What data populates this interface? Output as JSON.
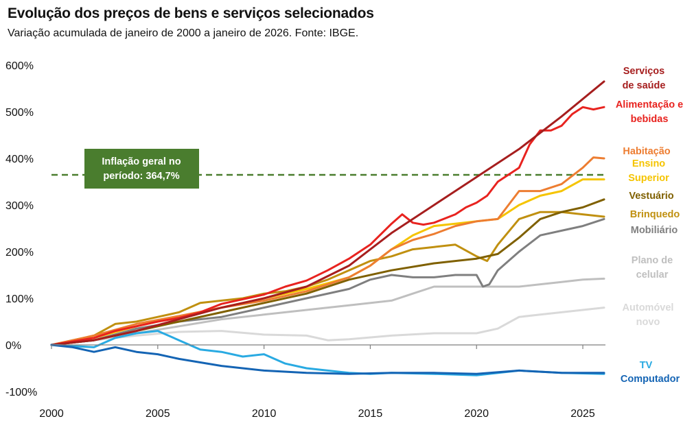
{
  "title": "Evolução dos preços de bens e serviços selecionados",
  "subtitle": "Variação acumulada de janeiro de 2000 a janeiro de 2026. Fonte: IBGE.",
  "chart_data": {
    "type": "line",
    "title": "Evolução dos preços de bens e serviços selecionados",
    "subtitle": "Variação acumulada de janeiro de 2000 a janeiro de 2026. Fonte: IBGE.",
    "xlabel": "",
    "ylabel": "",
    "xlim": [
      2000,
      2026.5
    ],
    "ylim": [
      -100,
      600
    ],
    "x_ticks": [
      2000,
      2005,
      2010,
      2015,
      2020,
      2025
    ],
    "y_ticks": [
      600,
      500,
      400,
      300,
      200,
      100,
      0,
      -100
    ],
    "y_tick_labels": [
      "600%",
      "500%",
      "400%",
      "300%",
      "200%",
      "100%",
      "0%",
      "-100%"
    ],
    "grid": false,
    "reference_line": {
      "value": 364.7,
      "label": "Inflação geral no período: 364,7%",
      "label_lines": [
        "Inflação geral no",
        "período: 364,7%"
      ],
      "color": "#4a7d2e",
      "style": "dashed"
    },
    "series": [
      {
        "name": "Serviços de saúde",
        "label_lines": [
          "Serviços",
          "de saúde"
        ],
        "color": "#a61e1e",
        "width": 3,
        "x": [
          2000,
          2002,
          2004,
          2006,
          2008,
          2010,
          2012,
          2014,
          2016,
          2018,
          2020,
          2022,
          2024,
          2026
        ],
        "y": [
          0,
          10,
          30,
          55,
          80,
          100,
          125,
          170,
          240,
          300,
          360,
          420,
          490,
          565
        ]
      },
      {
        "name": "Alimentação e bebidas",
        "label_lines": [
          "Alimentação e",
          "bebidas"
        ],
        "color": "#e8231f",
        "width": 3,
        "x": [
          2000,
          2002,
          2003,
          2004,
          2005,
          2006,
          2007,
          2008,
          2009,
          2010,
          2011,
          2012,
          2013,
          2014,
          2015,
          2016,
          2016.5,
          2017,
          2017.5,
          2018,
          2019,
          2019.5,
          2020,
          2020.5,
          2021,
          2022,
          2022.5,
          2023,
          2023.5,
          2024,
          2024.5,
          2025,
          2025.5,
          2026
        ],
        "y": [
          0,
          15,
          30,
          40,
          50,
          58,
          70,
          88,
          98,
          108,
          125,
          138,
          160,
          185,
          215,
          260,
          280,
          262,
          258,
          262,
          280,
          295,
          305,
          320,
          350,
          380,
          430,
          460,
          460,
          470,
          495,
          510,
          505,
          510
        ]
      },
      {
        "name": "Habitação",
        "label_lines": [
          "Habitação"
        ],
        "color": "#ed7d31",
        "width": 3,
        "x": [
          2000,
          2002,
          2004,
          2006,
          2008,
          2010,
          2012,
          2014,
          2015,
          2016,
          2017,
          2018,
          2019,
          2020,
          2021,
          2022,
          2023,
          2024,
          2025,
          2025.5,
          2026
        ],
        "y": [
          0,
          20,
          45,
          62,
          80,
          95,
          115,
          145,
          170,
          205,
          225,
          238,
          255,
          265,
          270,
          330,
          330,
          345,
          380,
          402,
          400
        ]
      },
      {
        "name": "Ensino Superior",
        "label_lines": [
          "Ensino",
          "Superior"
        ],
        "color": "#f5c400",
        "width": 3,
        "x": [
          2000,
          2002,
          2004,
          2006,
          2008,
          2010,
          2012,
          2014,
          2015,
          2016,
          2017,
          2018,
          2019,
          2020,
          2021,
          2022,
          2023,
          2024,
          2025,
          2026
        ],
        "y": [
          0,
          15,
          40,
          60,
          80,
          100,
          120,
          145,
          170,
          205,
          235,
          255,
          260,
          265,
          270,
          300,
          320,
          330,
          355,
          355
        ]
      },
      {
        "name": "Vestuário",
        "label_lines": [
          "Vestuário"
        ],
        "color": "#7f6000",
        "width": 3,
        "x": [
          2000,
          2002,
          2004,
          2006,
          2008,
          2010,
          2012,
          2014,
          2016,
          2018,
          2020,
          2021,
          2022,
          2023,
          2024,
          2025,
          2026
        ],
        "y": [
          0,
          10,
          30,
          50,
          70,
          90,
          110,
          140,
          160,
          175,
          185,
          195,
          230,
          270,
          285,
          295,
          312
        ]
      },
      {
        "name": "Brinquedo",
        "label_lines": [
          "Brinquedo"
        ],
        "color": "#c09010",
        "width": 3,
        "x": [
          2000,
          2002,
          2003,
          2004,
          2005,
          2006,
          2007,
          2008,
          2009,
          2010,
          2011,
          2012,
          2013,
          2014,
          2015,
          2016,
          2017,
          2018,
          2019,
          2020,
          2020.5,
          2021,
          2022,
          2023,
          2024,
          2025,
          2026
        ],
        "y": [
          0,
          20,
          45,
          50,
          60,
          70,
          90,
          95,
          100,
          110,
          115,
          125,
          140,
          160,
          180,
          190,
          205,
          210,
          215,
          190,
          180,
          215,
          270,
          285,
          285,
          280,
          275
        ]
      },
      {
        "name": "Mobiliário",
        "label_lines": [
          "Mobiliário"
        ],
        "color": "#7f7f7f",
        "width": 3,
        "x": [
          2000,
          2002,
          2004,
          2006,
          2008,
          2010,
          2012,
          2014,
          2015,
          2016,
          2017,
          2018,
          2019,
          2020,
          2020.3,
          2020.6,
          2021,
          2022,
          2023,
          2024,
          2025,
          2026
        ],
        "y": [
          0,
          10,
          35,
          50,
          60,
          80,
          100,
          120,
          140,
          150,
          145,
          145,
          150,
          150,
          125,
          130,
          160,
          200,
          235,
          245,
          255,
          270
        ]
      },
      {
        "name": "Plano de celular",
        "label_lines": [
          "Plano de",
          "celular"
        ],
        "color": "#bfbfbf",
        "width": 3,
        "x": [
          2000,
          2002,
          2004,
          2006,
          2008,
          2010,
          2012,
          2014,
          2016,
          2017,
          2018,
          2020,
          2021,
          2022,
          2023,
          2024,
          2025,
          2026
        ],
        "y": [
          0,
          10,
          25,
          40,
          55,
          65,
          75,
          85,
          95,
          110,
          125,
          125,
          125,
          125,
          130,
          135,
          140,
          142
        ]
      },
      {
        "name": "Automóvel novo",
        "label_lines": [
          "Automóvel",
          "novo"
        ],
        "color": "#d9d9d9",
        "width": 3,
        "x": [
          2000,
          2002,
          2004,
          2006,
          2008,
          2010,
          2012,
          2013,
          2014,
          2016,
          2018,
          2020,
          2021,
          2022,
          2023,
          2024,
          2025,
          2026
        ],
        "y": [
          0,
          10,
          20,
          28,
          30,
          22,
          20,
          10,
          12,
          20,
          25,
          25,
          35,
          60,
          65,
          70,
          75,
          80
        ]
      },
      {
        "name": "TV",
        "label_lines": [
          "TV"
        ],
        "color": "#29aae2",
        "width": 3,
        "x": [
          2000,
          2002,
          2003,
          2004,
          2005,
          2006,
          2007,
          2008,
          2009,
          2010,
          2011,
          2012,
          2013,
          2014,
          2015,
          2016,
          2018,
          2020,
          2022,
          2024,
          2026
        ],
        "y": [
          0,
          -5,
          15,
          25,
          30,
          10,
          -10,
          -15,
          -25,
          -20,
          -40,
          -50,
          -55,
          -60,
          -62,
          -60,
          -62,
          -65,
          -55,
          -60,
          -62
        ]
      },
      {
        "name": "Computador",
        "label_lines": [
          "Computador"
        ],
        "color": "#1464b4",
        "width": 3,
        "x": [
          2000,
          2001,
          2002,
          2003,
          2004,
          2005,
          2006,
          2008,
          2010,
          2012,
          2014,
          2016,
          2018,
          2020,
          2022,
          2024,
          2026
        ],
        "y": [
          0,
          -5,
          -15,
          -5,
          -15,
          -20,
          -30,
          -45,
          -55,
          -60,
          -62,
          -60,
          -60,
          -62,
          -55,
          -60,
          -60
        ]
      }
    ]
  }
}
